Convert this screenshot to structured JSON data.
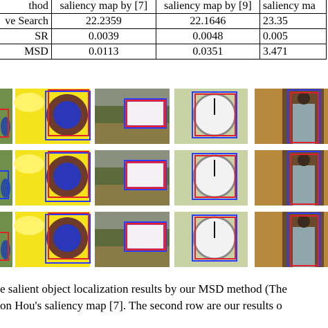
{
  "table": {
    "header": [
      "thod",
      "saliency map by [7]",
      "saliency map by [9]",
      "saliency ma"
    ],
    "rows": [
      [
        "ve Search",
        "22.2359",
        "22.1646",
        "23.35"
      ],
      [
        "SR",
        "0.0039",
        "0.0048",
        "0.005"
      ],
      [
        "MSD",
        "0.0113",
        "0.0351",
        "3.471"
      ]
    ]
  },
  "caption": {
    "lines": [
      "e salient object localization results by our MSD method (The",
      "on Hou's saliency map [7]. The second row are our results o"
    ]
  }
}
